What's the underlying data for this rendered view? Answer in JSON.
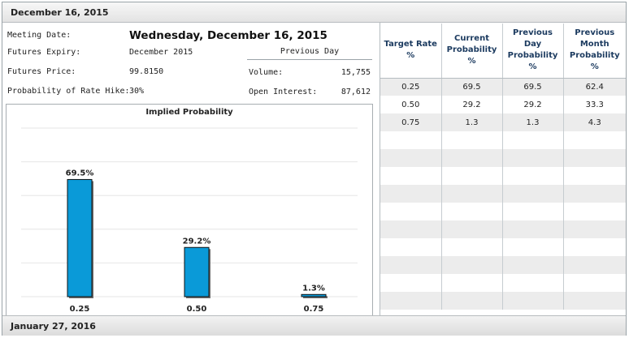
{
  "header": {
    "date": "December 16, 2015"
  },
  "footer": {
    "date": "January 27, 2016"
  },
  "info": {
    "meeting_date_label": "Meeting Date:",
    "meeting_date_value": "Wednesday, December 16, 2015",
    "futures_expiry_label": "Futures Expiry:",
    "futures_expiry_value": "December 2015",
    "futures_price_label": "Futures Price:",
    "futures_price_value": "99.8150",
    "rate_hike_label": "Probability of Rate Hike:",
    "rate_hike_value": "30%",
    "previous_day_label": "Previous Day",
    "volume_label": "Volume:",
    "volume_value": "15,755",
    "open_interest_label": "Open Interest:",
    "open_interest_value": "87,612"
  },
  "table": {
    "headers": [
      "Target Rate %",
      "Current Probability %",
      "Previous Day Probability %",
      "Previous Month Probability %"
    ],
    "rows": [
      [
        "0.25",
        "69.5",
        "69.5",
        "62.4"
      ],
      [
        "0.50",
        "29.2",
        "29.2",
        "33.3"
      ],
      [
        "0.75",
        "1.3",
        "1.3",
        "4.3"
      ]
    ],
    "total_rows": 13
  },
  "colors": {
    "bar": "#0a9ad8",
    "header_text": "#1b3a5f",
    "stripe": "#ececec"
  },
  "chart_data": {
    "type": "bar",
    "title": "Implied Probability",
    "categories": [
      "0.25",
      "0.50",
      "0.75"
    ],
    "values": [
      69.5,
      29.2,
      1.3
    ],
    "value_labels": [
      "69.5%",
      "29.2%",
      "1.3%"
    ],
    "xlabel": "",
    "ylabel": "",
    "ylim": [
      0,
      100
    ],
    "grid": true
  }
}
